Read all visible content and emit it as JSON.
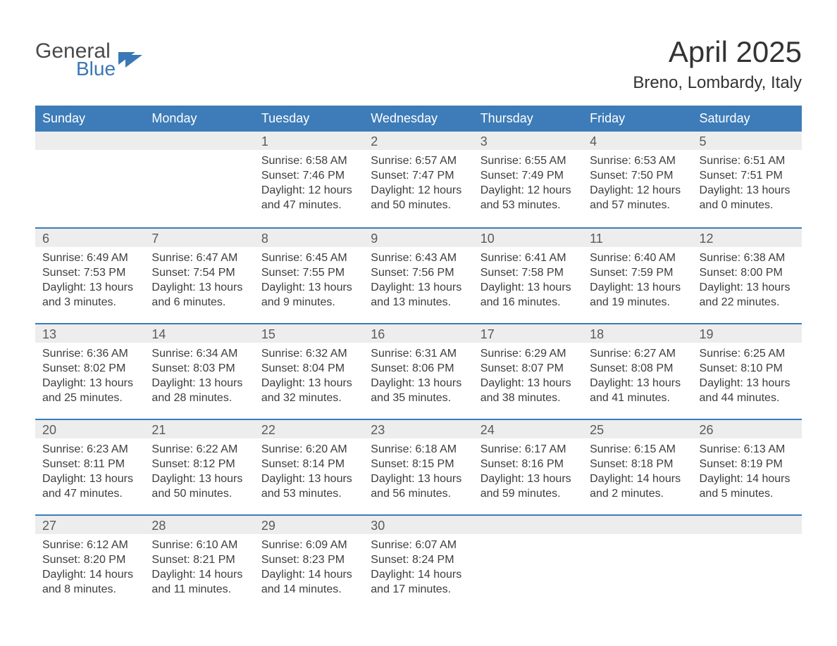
{
  "logo": {
    "general": "General",
    "blue": "Blue"
  },
  "header": {
    "title": "April 2025",
    "subtitle": "Breno, Lombardy, Italy"
  },
  "colors": {
    "header_bg": "#3d7cb8",
    "header_text": "#ffffff",
    "daynum_bg": "#ededed",
    "text": "#333333",
    "logo_blue": "#3a78b5"
  },
  "day_names": [
    "Sunday",
    "Monday",
    "Tuesday",
    "Wednesday",
    "Thursday",
    "Friday",
    "Saturday"
  ],
  "weeks": [
    [
      {
        "day": "",
        "sunrise": "",
        "sunset": "",
        "daylight1": "",
        "daylight2": ""
      },
      {
        "day": "",
        "sunrise": "",
        "sunset": "",
        "daylight1": "",
        "daylight2": ""
      },
      {
        "day": "1",
        "sunrise": "Sunrise: 6:58 AM",
        "sunset": "Sunset: 7:46 PM",
        "daylight1": "Daylight: 12 hours",
        "daylight2": "and 47 minutes."
      },
      {
        "day": "2",
        "sunrise": "Sunrise: 6:57 AM",
        "sunset": "Sunset: 7:47 PM",
        "daylight1": "Daylight: 12 hours",
        "daylight2": "and 50 minutes."
      },
      {
        "day": "3",
        "sunrise": "Sunrise: 6:55 AM",
        "sunset": "Sunset: 7:49 PM",
        "daylight1": "Daylight: 12 hours",
        "daylight2": "and 53 minutes."
      },
      {
        "day": "4",
        "sunrise": "Sunrise: 6:53 AM",
        "sunset": "Sunset: 7:50 PM",
        "daylight1": "Daylight: 12 hours",
        "daylight2": "and 57 minutes."
      },
      {
        "day": "5",
        "sunrise": "Sunrise: 6:51 AM",
        "sunset": "Sunset: 7:51 PM",
        "daylight1": "Daylight: 13 hours",
        "daylight2": "and 0 minutes."
      }
    ],
    [
      {
        "day": "6",
        "sunrise": "Sunrise: 6:49 AM",
        "sunset": "Sunset: 7:53 PM",
        "daylight1": "Daylight: 13 hours",
        "daylight2": "and 3 minutes."
      },
      {
        "day": "7",
        "sunrise": "Sunrise: 6:47 AM",
        "sunset": "Sunset: 7:54 PM",
        "daylight1": "Daylight: 13 hours",
        "daylight2": "and 6 minutes."
      },
      {
        "day": "8",
        "sunrise": "Sunrise: 6:45 AM",
        "sunset": "Sunset: 7:55 PM",
        "daylight1": "Daylight: 13 hours",
        "daylight2": "and 9 minutes."
      },
      {
        "day": "9",
        "sunrise": "Sunrise: 6:43 AM",
        "sunset": "Sunset: 7:56 PM",
        "daylight1": "Daylight: 13 hours",
        "daylight2": "and 13 minutes."
      },
      {
        "day": "10",
        "sunrise": "Sunrise: 6:41 AM",
        "sunset": "Sunset: 7:58 PM",
        "daylight1": "Daylight: 13 hours",
        "daylight2": "and 16 minutes."
      },
      {
        "day": "11",
        "sunrise": "Sunrise: 6:40 AM",
        "sunset": "Sunset: 7:59 PM",
        "daylight1": "Daylight: 13 hours",
        "daylight2": "and 19 minutes."
      },
      {
        "day": "12",
        "sunrise": "Sunrise: 6:38 AM",
        "sunset": "Sunset: 8:00 PM",
        "daylight1": "Daylight: 13 hours",
        "daylight2": "and 22 minutes."
      }
    ],
    [
      {
        "day": "13",
        "sunrise": "Sunrise: 6:36 AM",
        "sunset": "Sunset: 8:02 PM",
        "daylight1": "Daylight: 13 hours",
        "daylight2": "and 25 minutes."
      },
      {
        "day": "14",
        "sunrise": "Sunrise: 6:34 AM",
        "sunset": "Sunset: 8:03 PM",
        "daylight1": "Daylight: 13 hours",
        "daylight2": "and 28 minutes."
      },
      {
        "day": "15",
        "sunrise": "Sunrise: 6:32 AM",
        "sunset": "Sunset: 8:04 PM",
        "daylight1": "Daylight: 13 hours",
        "daylight2": "and 32 minutes."
      },
      {
        "day": "16",
        "sunrise": "Sunrise: 6:31 AM",
        "sunset": "Sunset: 8:06 PM",
        "daylight1": "Daylight: 13 hours",
        "daylight2": "and 35 minutes."
      },
      {
        "day": "17",
        "sunrise": "Sunrise: 6:29 AM",
        "sunset": "Sunset: 8:07 PM",
        "daylight1": "Daylight: 13 hours",
        "daylight2": "and 38 minutes."
      },
      {
        "day": "18",
        "sunrise": "Sunrise: 6:27 AM",
        "sunset": "Sunset: 8:08 PM",
        "daylight1": "Daylight: 13 hours",
        "daylight2": "and 41 minutes."
      },
      {
        "day": "19",
        "sunrise": "Sunrise: 6:25 AM",
        "sunset": "Sunset: 8:10 PM",
        "daylight1": "Daylight: 13 hours",
        "daylight2": "and 44 minutes."
      }
    ],
    [
      {
        "day": "20",
        "sunrise": "Sunrise: 6:23 AM",
        "sunset": "Sunset: 8:11 PM",
        "daylight1": "Daylight: 13 hours",
        "daylight2": "and 47 minutes."
      },
      {
        "day": "21",
        "sunrise": "Sunrise: 6:22 AM",
        "sunset": "Sunset: 8:12 PM",
        "daylight1": "Daylight: 13 hours",
        "daylight2": "and 50 minutes."
      },
      {
        "day": "22",
        "sunrise": "Sunrise: 6:20 AM",
        "sunset": "Sunset: 8:14 PM",
        "daylight1": "Daylight: 13 hours",
        "daylight2": "and 53 minutes."
      },
      {
        "day": "23",
        "sunrise": "Sunrise: 6:18 AM",
        "sunset": "Sunset: 8:15 PM",
        "daylight1": "Daylight: 13 hours",
        "daylight2": "and 56 minutes."
      },
      {
        "day": "24",
        "sunrise": "Sunrise: 6:17 AM",
        "sunset": "Sunset: 8:16 PM",
        "daylight1": "Daylight: 13 hours",
        "daylight2": "and 59 minutes."
      },
      {
        "day": "25",
        "sunrise": "Sunrise: 6:15 AM",
        "sunset": "Sunset: 8:18 PM",
        "daylight1": "Daylight: 14 hours",
        "daylight2": "and 2 minutes."
      },
      {
        "day": "26",
        "sunrise": "Sunrise: 6:13 AM",
        "sunset": "Sunset: 8:19 PM",
        "daylight1": "Daylight: 14 hours",
        "daylight2": "and 5 minutes."
      }
    ],
    [
      {
        "day": "27",
        "sunrise": "Sunrise: 6:12 AM",
        "sunset": "Sunset: 8:20 PM",
        "daylight1": "Daylight: 14 hours",
        "daylight2": "and 8 minutes."
      },
      {
        "day": "28",
        "sunrise": "Sunrise: 6:10 AM",
        "sunset": "Sunset: 8:21 PM",
        "daylight1": "Daylight: 14 hours",
        "daylight2": "and 11 minutes."
      },
      {
        "day": "29",
        "sunrise": "Sunrise: 6:09 AM",
        "sunset": "Sunset: 8:23 PM",
        "daylight1": "Daylight: 14 hours",
        "daylight2": "and 14 minutes."
      },
      {
        "day": "30",
        "sunrise": "Sunrise: 6:07 AM",
        "sunset": "Sunset: 8:24 PM",
        "daylight1": "Daylight: 14 hours",
        "daylight2": "and 17 minutes."
      },
      {
        "day": "",
        "sunrise": "",
        "sunset": "",
        "daylight1": "",
        "daylight2": ""
      },
      {
        "day": "",
        "sunrise": "",
        "sunset": "",
        "daylight1": "",
        "daylight2": ""
      },
      {
        "day": "",
        "sunrise": "",
        "sunset": "",
        "daylight1": "",
        "daylight2": ""
      }
    ]
  ]
}
